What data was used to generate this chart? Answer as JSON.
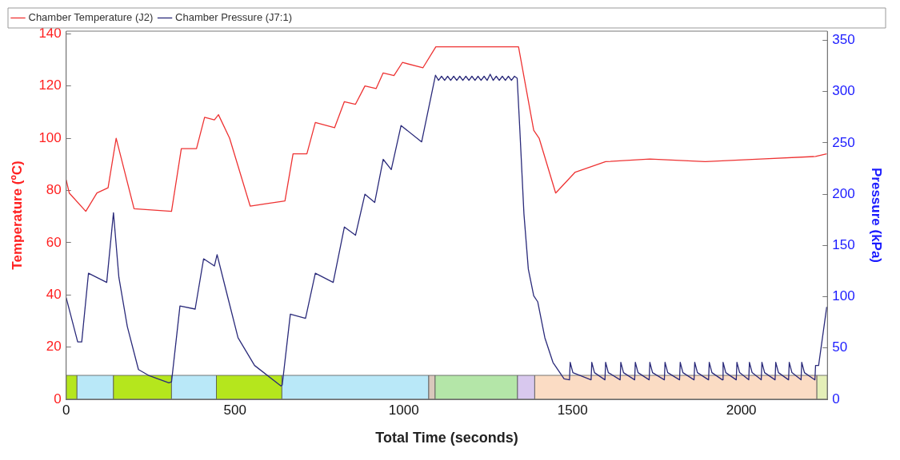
{
  "chart_data": {
    "type": "line",
    "xlabel": "Total Time (seconds)",
    "ylabel": "Temperature (ºC)",
    "y2label": "Pressure (kPa)",
    "xlim": [
      0,
      2255
    ],
    "xticks": [
      0,
      500,
      1000,
      1500,
      2000
    ],
    "ylim": [
      0,
      141
    ],
    "yticks": [
      0,
      20,
      40,
      60,
      80,
      100,
      120,
      140
    ],
    "y2lim": [
      0,
      359
    ],
    "y2ticks": [
      0,
      50,
      100,
      150,
      200,
      250,
      300,
      350
    ],
    "grid": false,
    "legend": "top",
    "marker": "none",
    "line_style": "solid",
    "bands": [
      {
        "axis": "x",
        "from": 0,
        "to": 32,
        "color": "#b5e61d"
      },
      {
        "axis": "x",
        "from": 32,
        "to": 140,
        "color": "#b9e8f8"
      },
      {
        "axis": "x",
        "from": 140,
        "to": 312,
        "color": "#b5e61d"
      },
      {
        "axis": "x",
        "from": 312,
        "to": 445,
        "color": "#b9e8f8"
      },
      {
        "axis": "x",
        "from": 445,
        "to": 639,
        "color": "#b5e61d"
      },
      {
        "axis": "x",
        "from": 639,
        "to": 1074,
        "color": "#b9e8f8"
      },
      {
        "axis": "x",
        "from": 1074,
        "to": 1093,
        "color": "#d9c8bc"
      },
      {
        "axis": "x",
        "from": 1093,
        "to": 1337,
        "color": "#b4e6a8"
      },
      {
        "axis": "x",
        "from": 1337,
        "to": 1388,
        "color": "#d8c8ee"
      },
      {
        "axis": "x",
        "from": 1388,
        "to": 2224,
        "color": "#fbdcc4"
      },
      {
        "axis": "x",
        "from": 2224,
        "to": 2255,
        "color": "#e4efb8"
      }
    ],
    "series": [
      {
        "name": "Chamber Temperature (J2)",
        "color": "#ee3333",
        "x": [
          0,
          9,
          58,
          91,
          124,
          148,
          201,
          312,
          341,
          386,
          410,
          439,
          451,
          484,
          545,
          648,
          672,
          713,
          738,
          795,
          824,
          857,
          885,
          918,
          939,
          971,
          996,
          1057,
          1095,
          1340,
          1385,
          1401,
          1450,
          1508,
          1598,
          1729,
          1893,
          2057,
          2220,
          2253
        ],
        "values": [
          84,
          79,
          72,
          79,
          81,
          100,
          73,
          72,
          96,
          96,
          108,
          107,
          109,
          100,
          74,
          76,
          94,
          94,
          106,
          104,
          114,
          113,
          120,
          119,
          125,
          124,
          129,
          127,
          135,
          135,
          103,
          100,
          79,
          87,
          91,
          92,
          91,
          92,
          93,
          94
        ]
      },
      {
        "name": "Chamber Pressure (J7:1)",
        "color": "#2a2a7a",
        "axis": "y2",
        "x": [
          0,
          34,
          46,
          66,
          120,
          140,
          156,
          181,
          214,
          246,
          304,
          312,
          337,
          382,
          407,
          439,
          447,
          476,
          509,
          558,
          636,
          640,
          664,
          709,
          738,
          791,
          824,
          857,
          885,
          914,
          939,
          963,
          992,
          1053,
          1094,
          1103,
          1112,
          1121,
          1130,
          1139,
          1148,
          1157,
          1166,
          1175,
          1184,
          1193,
          1202,
          1211,
          1220,
          1229,
          1238,
          1247,
          1256,
          1265,
          1274,
          1283,
          1292,
          1301,
          1310,
          1319,
          1328,
          1336,
          1344,
          1356,
          1369,
          1385,
          1397,
          1418,
          1442,
          1475,
          1491,
          1493,
          1501,
          1555,
          1557,
          1565,
          1596,
          1598,
          1606,
          1641,
          1643,
          1651,
          1684,
          1686,
          1694,
          1727,
          1729,
          1737,
          1772,
          1774,
          1782,
          1817,
          1819,
          1827,
          1860,
          1862,
          1870,
          1903,
          1905,
          1913,
          1944,
          1946,
          1954,
          1985,
          1987,
          1995,
          2022,
          2024,
          2032,
          2059,
          2061,
          2069,
          2100,
          2102,
          2110,
          2140,
          2142,
          2150,
          2177,
          2179,
          2187,
          2218,
          2220,
          2229,
          2253
        ],
        "values": [
          99,
          56,
          56,
          123,
          114,
          182,
          119,
          71,
          29,
          23,
          16,
          17,
          91,
          88,
          137,
          130,
          141,
          103,
          60,
          33,
          13,
          14,
          83,
          79,
          123,
          114,
          168,
          160,
          200,
          192,
          234,
          224,
          267,
          251,
          316,
          311,
          315,
          311,
          315,
          311,
          315,
          311,
          315,
          311,
          315,
          311,
          315,
          311,
          315,
          311,
          315,
          311,
          317,
          311,
          315,
          311,
          315,
          311,
          315,
          311,
          315,
          313,
          262,
          181,
          127,
          101,
          95,
          60,
          36,
          20,
          19,
          36,
          26,
          19,
          36,
          26,
          19,
          36,
          26,
          19,
          36,
          26,
          19,
          36,
          26,
          19,
          36,
          26,
          19,
          36,
          26,
          19,
          36,
          26,
          19,
          36,
          26,
          19,
          36,
          26,
          19,
          36,
          26,
          19,
          36,
          26,
          19,
          36,
          26,
          19,
          36,
          26,
          19,
          36,
          26,
          19,
          36,
          26,
          19,
          36,
          26,
          19,
          33,
          33,
          90
        ]
      }
    ]
  }
}
